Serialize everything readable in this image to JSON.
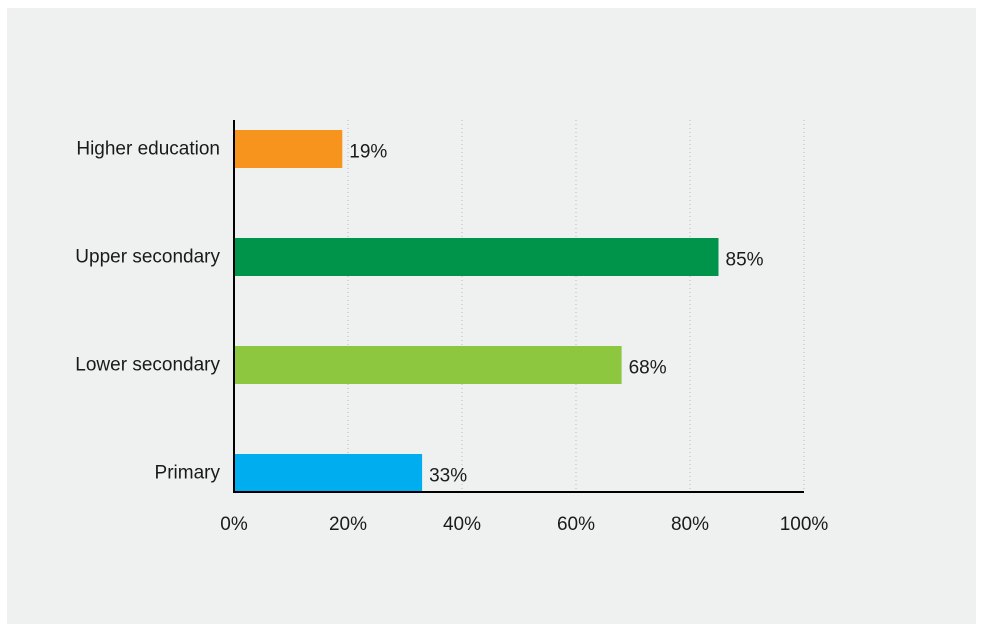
{
  "chart_data": {
    "type": "bar",
    "orientation": "horizontal",
    "categories": [
      "Higher education",
      "Upper secondary",
      "Lower secondary",
      "Primary"
    ],
    "values": [
      19,
      85,
      68,
      33
    ],
    "value_labels": [
      "19%",
      "85%",
      "68%",
      "33%"
    ],
    "colors": [
      "#f7941d",
      "#00944a",
      "#8dc63f",
      "#00aeef"
    ],
    "xlim": [
      0,
      100
    ],
    "xticks": [
      0,
      20,
      40,
      60,
      80,
      100
    ],
    "xtick_labels": [
      "0%",
      "20%",
      "40%",
      "60%",
      "80%",
      "100%"
    ],
    "grid": "vertical dotted",
    "title": "",
    "xlabel": "",
    "ylabel": ""
  },
  "colors": {
    "background": "#eff1f0",
    "axis": "#000000",
    "grid": "#b9bcbb",
    "text": "#1a1a1a"
  }
}
